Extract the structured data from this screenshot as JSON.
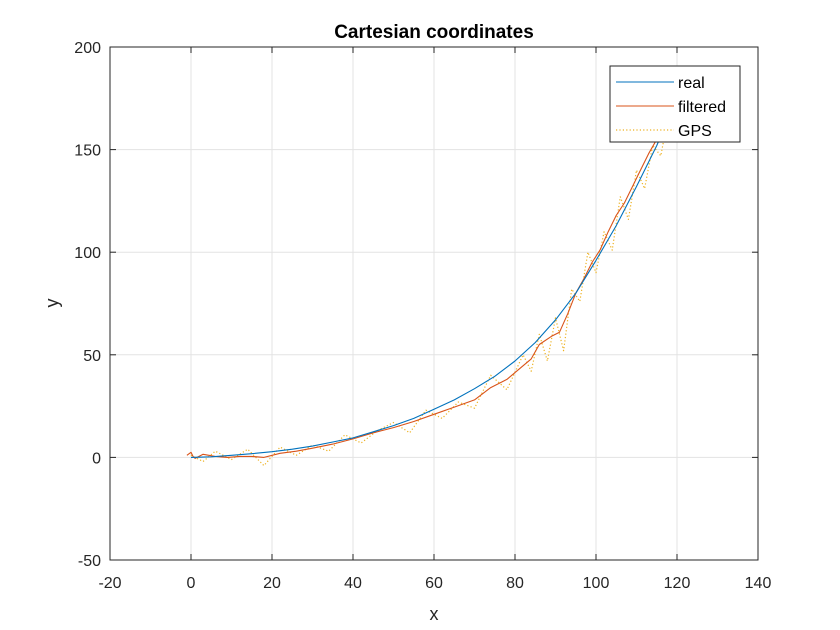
{
  "chart_data": {
    "type": "line",
    "title": "Cartesian coordinates",
    "xlabel": "x",
    "ylabel": "y",
    "xlim": [
      -20,
      140
    ],
    "ylim": [
      -50,
      200
    ],
    "xticks": [
      -20,
      0,
      20,
      40,
      60,
      80,
      100,
      120,
      140
    ],
    "yticks": [
      -50,
      0,
      50,
      100,
      150,
      200
    ],
    "grid": true,
    "legend_position": "top-right",
    "series": [
      {
        "name": "real",
        "color": "#0072BD",
        "style": "solid",
        "x": [
          0,
          5,
          10,
          15,
          20,
          25,
          30,
          35,
          40,
          45,
          50,
          55,
          60,
          65,
          70,
          75,
          80,
          85,
          90,
          95,
          100,
          105,
          110,
          115,
          120
        ],
        "y": [
          0,
          0.3,
          1,
          1.8,
          2.8,
          4,
          5.5,
          7.5,
          9.5,
          12.5,
          15.5,
          19,
          23.5,
          28,
          33.5,
          39.5,
          47,
          56,
          67,
          80,
          96,
          113,
          132,
          152,
          175
        ]
      },
      {
        "name": "filtered",
        "color": "#D95319",
        "style": "solid",
        "x": [
          -1,
          0,
          0.5,
          1,
          3,
          6,
          9,
          12,
          15,
          18,
          22,
          26,
          30,
          35,
          40,
          45,
          50,
          55,
          60,
          65,
          70,
          74,
          78,
          81,
          84,
          86,
          89,
          91,
          93,
          95,
          97,
          99,
          101,
          103,
          105,
          107,
          109,
          111,
          113,
          115
        ],
        "y": [
          1,
          2.5,
          0.5,
          -0.5,
          1.5,
          0.5,
          0,
          0.5,
          0.5,
          0,
          2,
          3,
          4.5,
          6.5,
          9,
          12,
          14.5,
          17.5,
          21,
          24.5,
          28,
          34,
          38,
          43,
          48,
          55,
          59,
          61,
          70,
          80,
          87,
          95,
          101,
          110,
          118,
          124,
          132,
          140,
          148,
          155
        ]
      },
      {
        "name": "GPS",
        "color": "#EDB120",
        "style": "dotted",
        "x": [
          0,
          3,
          6,
          10,
          14,
          18,
          22,
          26,
          30,
          34,
          38,
          42,
          46,
          50,
          54,
          58,
          62,
          66,
          70,
          74,
          78,
          82,
          84,
          86,
          88,
          90,
          92,
          94,
          96,
          98,
          100,
          102,
          104,
          106,
          108,
          110,
          112,
          114,
          116,
          118,
          120,
          122,
          124
        ],
        "y": [
          1,
          -2,
          3,
          -1,
          4,
          -4,
          5,
          1,
          6,
          3,
          11,
          7,
          13,
          17,
          12,
          23,
          19,
          27,
          24,
          40,
          33,
          50,
          42,
          60,
          47,
          68,
          52,
          82,
          76,
          100,
          90,
          110,
          101,
          127,
          116,
          140,
          131,
          152,
          147,
          168,
          161,
          186,
          178
        ]
      }
    ]
  }
}
